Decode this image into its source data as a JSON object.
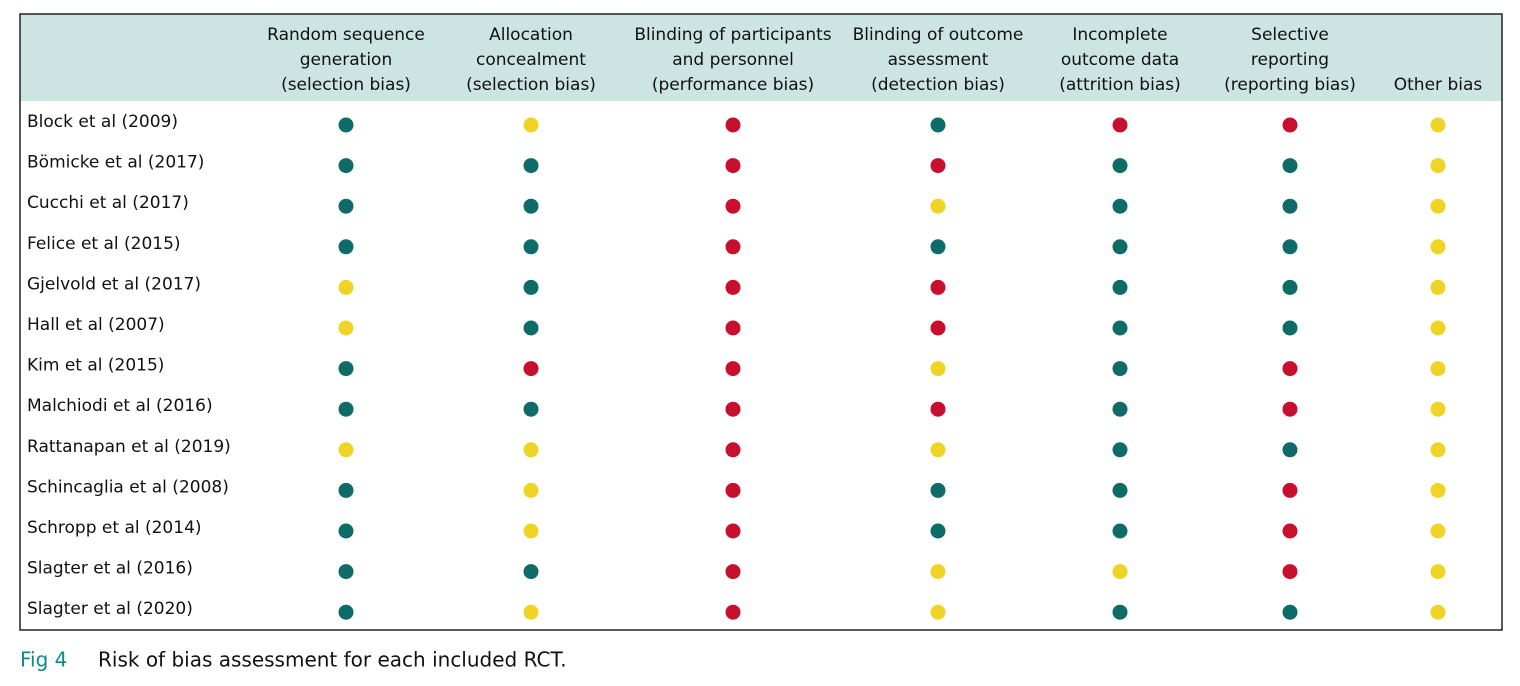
{
  "table": {
    "columns": [
      [
        "Random sequence",
        "generation",
        "(selection bias)"
      ],
      [
        "Allocation",
        "concealment",
        "(selection bias)"
      ],
      [
        "Blinding of participants",
        "and personnel",
        "(performance bias)"
      ],
      [
        "Blinding of outcome",
        "assessment",
        "(detection bias)"
      ],
      [
        "Incomplete",
        "outcome data",
        "(attrition bias)"
      ],
      [
        "Selective",
        "reporting",
        "(reporting bias)"
      ],
      [
        "Other bias"
      ]
    ],
    "rows": [
      {
        "study": "Block et al (2009)",
        "cells": [
          "#0f6b67",
          "#f0d425",
          "#c8102e",
          "#0f6b67",
          "#c8102e",
          "#c8102e",
          "#f0d425"
        ]
      },
      {
        "study": "Bömicke et al (2017)",
        "cells": [
          "#0f6b67",
          "#0f6b67",
          "#c8102e",
          "#c8102e",
          "#0f6b67",
          "#0f6b67",
          "#f0d425"
        ]
      },
      {
        "study": "Cucchi et al (2017)",
        "cells": [
          "#0f6b67",
          "#0f6b67",
          "#c8102e",
          "#f0d425",
          "#0f6b67",
          "#0f6b67",
          "#f0d425"
        ]
      },
      {
        "study": "Felice et al (2015)",
        "cells": [
          "#0f6b67",
          "#0f6b67",
          "#c8102e",
          "#0f6b67",
          "#0f6b67",
          "#0f6b67",
          "#f0d425"
        ]
      },
      {
        "study": "Gjelvold et al (2017)",
        "cells": [
          "#f0d425",
          "#0f6b67",
          "#c8102e",
          "#c8102e",
          "#0f6b67",
          "#0f6b67",
          "#f0d425"
        ]
      },
      {
        "study": "Hall et al (2007)",
        "cells": [
          "#f0d425",
          "#0f6b67",
          "#c8102e",
          "#c8102e",
          "#0f6b67",
          "#0f6b67",
          "#f0d425"
        ]
      },
      {
        "study": "Kim et al (2015)",
        "cells": [
          "#0f6b67",
          "#c8102e",
          "#c8102e",
          "#f0d425",
          "#0f6b67",
          "#c8102e",
          "#f0d425"
        ]
      },
      {
        "study": "Malchiodi et al (2016)",
        "cells": [
          "#0f6b67",
          "#0f6b67",
          "#c8102e",
          "#c8102e",
          "#0f6b67",
          "#c8102e",
          "#f0d425"
        ]
      },
      {
        "study": "Rattanapan et al (2019)",
        "cells": [
          "#f0d425",
          "#f0d425",
          "#c8102e",
          "#f0d425",
          "#0f6b67",
          "#0f6b67",
          "#f0d425"
        ]
      },
      {
        "study": "Schincaglia et al (2008)",
        "cells": [
          "#0f6b67",
          "#f0d425",
          "#c8102e",
          "#0f6b67",
          "#0f6b67",
          "#c8102e",
          "#f0d425"
        ]
      },
      {
        "study": "Schropp et al (2014)",
        "cells": [
          "#0f6b67",
          "#f0d425",
          "#c8102e",
          "#0f6b67",
          "#0f6b67",
          "#c8102e",
          "#f0d425"
        ]
      },
      {
        "study": "Slagter et al (2016)",
        "cells": [
          "#0f6b67",
          "#0f6b67",
          "#c8102e",
          "#f0d425",
          "#f0d425",
          "#c8102e",
          "#f0d425"
        ]
      },
      {
        "study": "Slagter et al (2020)",
        "cells": [
          "#0f6b67",
          "#f0d425",
          "#c8102e",
          "#f0d425",
          "#0f6b67",
          "#0f6b67",
          "#f0d425"
        ]
      }
    ]
  },
  "caption": {
    "label": "Fig 4",
    "text": "Risk of bias assessment for each included RCT."
  }
}
